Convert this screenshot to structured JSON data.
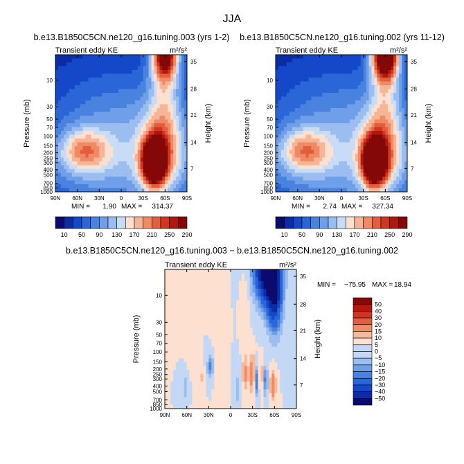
{
  "figure_title": "JJA",
  "chart_data": [
    {
      "type": "heatmap",
      "title": "b.e13.B1850C5CN.ne120_g16.tuning.003 (yrs 1-2)",
      "left_label": "Transient eddy KE",
      "units": "m²/s²",
      "ylabel": "Pressure (mb)",
      "y2label": "Height (km)",
      "x_ticks": [
        "90N",
        "60N",
        "30N",
        "0",
        "30S",
        "60S",
        "90S"
      ],
      "y_ticks": [
        "10",
        "30",
        "50",
        "70",
        "100",
        "150",
        "200",
        "250",
        "300",
        "400",
        "500",
        "700",
        "850",
        "1000"
      ],
      "y2_ticks": [
        "35",
        "28",
        "21",
        "14",
        "7"
      ],
      "stats": {
        "min_label": "MIN =",
        "min": "1.90",
        "max_label": "MAX =",
        "max": "314.37"
      },
      "colorbar_labels": [
        "10",
        "50",
        "90",
        "130",
        "170",
        "210",
        "250",
        "290"
      ],
      "blobs": [
        {
          "lat": 50,
          "lev": 7,
          "w": 35,
          "h": 1.6,
          "amp": 120
        },
        {
          "lat": 0,
          "lev": 6,
          "w": 110,
          "h": 5,
          "amp": 90
        },
        {
          "lat": -45,
          "lev": 7.8,
          "w": 16,
          "h": 1.7,
          "amp": 300
        },
        {
          "lat": -55,
          "lev": 7,
          "w": 35,
          "h": 3,
          "amp": 80
        },
        {
          "lat": -60,
          "lev": 0,
          "w": 18,
          "h": 1.8,
          "amp": 230
        },
        {
          "lat": -60,
          "lev": 3,
          "w": 22,
          "h": 5,
          "amp": 80
        }
      ]
    },
    {
      "type": "heatmap",
      "title": "b.e13.B1850C5CN.ne120_g16.tuning.002 (yrs 11-12)",
      "left_label": "Transient eddy KE",
      "units": "m²/s²",
      "ylabel": "Pressure (mb)",
      "y2label": "Height (km)",
      "x_ticks": [
        "90N",
        "60N",
        "30N",
        "0",
        "30S",
        "60S",
        "90S"
      ],
      "y_ticks": [
        "10",
        "30",
        "50",
        "70",
        "100",
        "150",
        "200",
        "250",
        "300",
        "400",
        "500",
        "700",
        "850",
        "1000"
      ],
      "y2_ticks": [
        "35",
        "28",
        "21",
        "14",
        "7"
      ],
      "stats": {
        "min_label": "MIN =",
        "min": "2.74",
        "max_label": "MAX =",
        "max": "327.34"
      },
      "colorbar_labels": [
        "10",
        "50",
        "90",
        "130",
        "170",
        "210",
        "250",
        "290"
      ],
      "blobs": [
        {
          "lat": 50,
          "lev": 7,
          "w": 35,
          "h": 1.6,
          "amp": 120
        },
        {
          "lat": 0,
          "lev": 6,
          "w": 110,
          "h": 5,
          "amp": 90
        },
        {
          "lat": -45,
          "lev": 7.8,
          "w": 16,
          "h": 1.7,
          "amp": 315
        },
        {
          "lat": -55,
          "lev": 7,
          "w": 35,
          "h": 3,
          "amp": 80
        },
        {
          "lat": -60,
          "lev": 0,
          "w": 18,
          "h": 1.8,
          "amp": 290
        },
        {
          "lat": -60,
          "lev": 3,
          "w": 22,
          "h": 5,
          "amp": 80
        }
      ]
    },
    {
      "type": "heatmap",
      "title": "b.e13.B1850C5CN.ne120_g16.tuning.003 − b.e13.B1850C5CN.ne120_g16.tuning.002",
      "left_label": "Transient eddy KE",
      "units": "m²/s²",
      "ylabel": "Pressure (mb)",
      "y2label": "Height (km)",
      "x_ticks": [
        "90N",
        "60N",
        "30N",
        "0",
        "30S",
        "60S",
        "90S"
      ],
      "y_ticks": [
        "10",
        "30",
        "50",
        "70",
        "100",
        "150",
        "200",
        "250",
        "300",
        "400",
        "500",
        "700",
        "850",
        "1000"
      ],
      "y2_ticks": [
        "35",
        "28",
        "21",
        "14",
        "7"
      ],
      "stats": {
        "min_label": "MIN =",
        "min": "−75.95",
        "max_label": "MAX =",
        "max": "18.94"
      },
      "colorbar_labels": [
        "50",
        "40",
        "30",
        "20",
        "15",
        "10",
        "5",
        "0",
        "−5",
        "−10",
        "−15",
        "−20",
        "−30",
        "−40",
        "−50"
      ],
      "blobs": [
        {
          "lat": -50,
          "lev": 0,
          "w": 16,
          "h": 2.2,
          "amp": -70
        },
        {
          "lat": -60,
          "lev": 2,
          "w": 10,
          "h": 2.4,
          "amp": -40
        },
        {
          "lat": -30,
          "lev": 7.5,
          "w": 4,
          "h": 1.3,
          "amp": 18
        },
        {
          "lat": -20,
          "lev": 7.5,
          "w": 4,
          "h": 1.3,
          "amp": 12
        },
        {
          "lat": -58,
          "lev": 8.3,
          "w": 4,
          "h": 1.2,
          "amp": 15
        },
        {
          "lat": -35,
          "lev": 8,
          "w": 3,
          "h": 1.1,
          "amp": -22
        },
        {
          "lat": -48,
          "lev": 8,
          "w": 3,
          "h": 1.1,
          "amp": -18
        },
        {
          "lat": -42,
          "lev": 7.6,
          "w": 3,
          "h": 1.2,
          "amp": 8
        },
        {
          "lat": 28,
          "lev": 7,
          "w": 4,
          "h": 0.8,
          "amp": -18
        },
        {
          "lat": 40,
          "lev": 7.8,
          "w": 4,
          "h": 0.8,
          "amp": 6
        },
        {
          "lat": 62,
          "lev": 8.4,
          "w": 4,
          "h": 0.9,
          "amp": -10
        },
        {
          "lat": 5,
          "lev": 9,
          "w": 3,
          "h": 0.8,
          "amp": 5
        },
        {
          "lat": -10,
          "lev": 8.5,
          "w": 4,
          "h": 1.5,
          "amp": -7
        },
        {
          "lat": 55,
          "lev": 3,
          "w": 6,
          "h": 3,
          "amp": 5
        },
        {
          "lat": 15,
          "lev": 4,
          "w": 6,
          "h": 3.5,
          "amp": 5
        },
        {
          "lat": -20,
          "lev": 3,
          "w": 5,
          "h": 2.5,
          "amp": 4
        }
      ]
    }
  ]
}
